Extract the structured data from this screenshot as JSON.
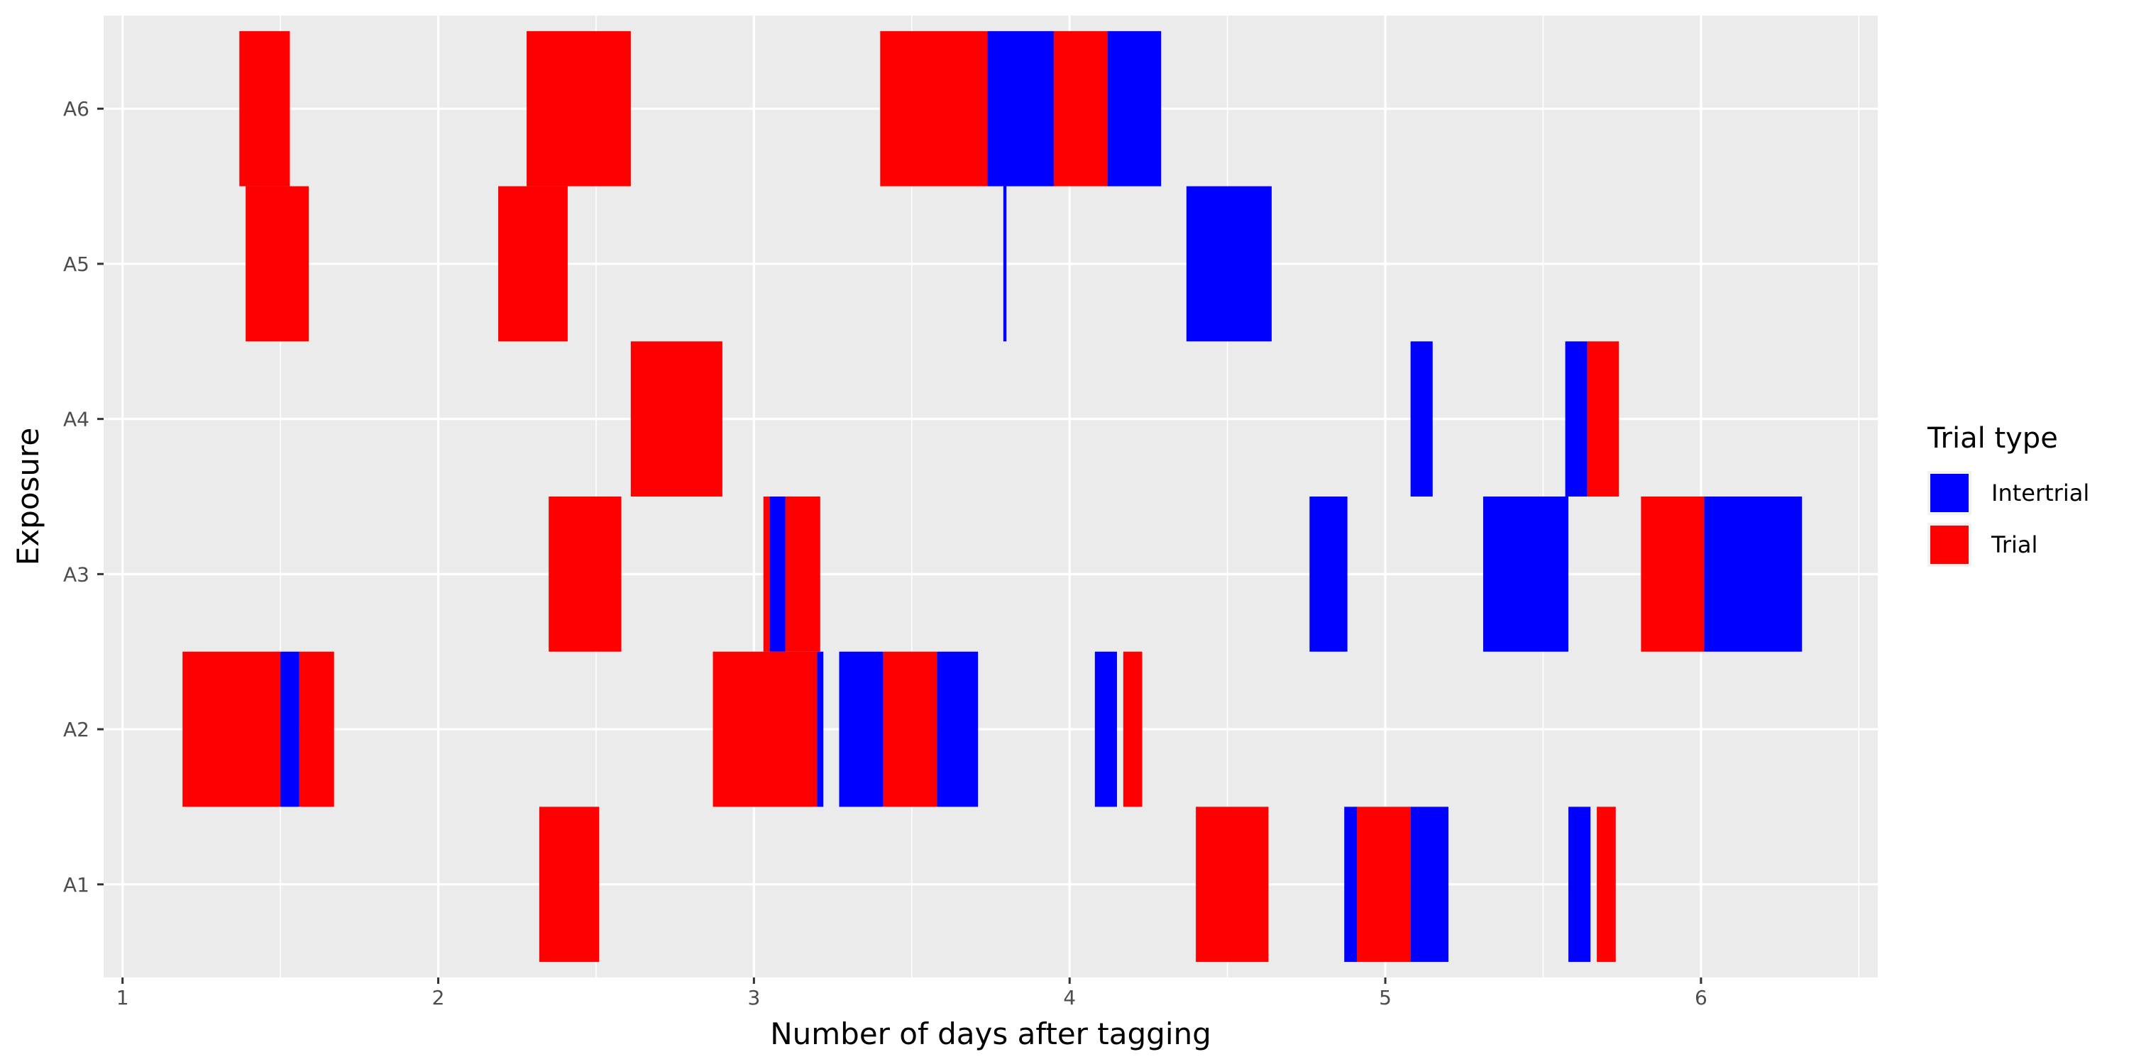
{
  "chart_data": {
    "type": "bar",
    "orientation": "horizontal",
    "title": "",
    "xlabel": "Number of days after tagging",
    "ylabel": "Exposure",
    "xlim": [
      0.94,
      6.56
    ],
    "x_ticks": [
      1,
      2,
      3,
      4,
      5,
      6
    ],
    "categories": [
      "A1",
      "A2",
      "A3",
      "A4",
      "A5",
      "A6"
    ],
    "grid": true,
    "legend": {
      "title": "Trial type",
      "position": "right",
      "entries": [
        {
          "label": "Intertrial",
          "color": "#0000FF"
        },
        {
          "label": "Trial",
          "color": "#FF0000"
        }
      ]
    },
    "colors": {
      "Intertrial": "#0000FF",
      "Trial": "#FF0000",
      "panel_background": "#EBEBEB",
      "gridline": "#FFFFFF"
    },
    "segments": [
      {
        "category": "A1",
        "type": "Trial",
        "start": 2.32,
        "end": 2.51
      },
      {
        "category": "A1",
        "type": "Trial",
        "start": 4.4,
        "end": 4.63
      },
      {
        "category": "A1",
        "type": "Intertrial",
        "start": 4.87,
        "end": 4.91
      },
      {
        "category": "A1",
        "type": "Trial",
        "start": 4.91,
        "end": 5.08
      },
      {
        "category": "A1",
        "type": "Intertrial",
        "start": 5.08,
        "end": 5.2
      },
      {
        "category": "A1",
        "type": "Intertrial",
        "start": 5.58,
        "end": 5.65
      },
      {
        "category": "A1",
        "type": "Trial",
        "start": 5.67,
        "end": 5.73
      },
      {
        "category": "A2",
        "type": "Trial",
        "start": 1.19,
        "end": 1.5
      },
      {
        "category": "A2",
        "type": "Intertrial",
        "start": 1.5,
        "end": 1.56
      },
      {
        "category": "A2",
        "type": "Trial",
        "start": 1.56,
        "end": 1.67
      },
      {
        "category": "A2",
        "type": "Trial",
        "start": 2.87,
        "end": 3.2
      },
      {
        "category": "A2",
        "type": "Intertrial",
        "start": 3.2,
        "end": 3.22
      },
      {
        "category": "A2",
        "type": "Intertrial",
        "start": 3.27,
        "end": 3.41
      },
      {
        "category": "A2",
        "type": "Trial",
        "start": 3.41,
        "end": 3.58
      },
      {
        "category": "A2",
        "type": "Intertrial",
        "start": 3.58,
        "end": 3.71
      },
      {
        "category": "A2",
        "type": "Intertrial",
        "start": 4.08,
        "end": 4.15
      },
      {
        "category": "A2",
        "type": "Trial",
        "start": 4.17,
        "end": 4.23
      },
      {
        "category": "A3",
        "type": "Trial",
        "start": 2.35,
        "end": 2.58
      },
      {
        "category": "A3",
        "type": "Trial",
        "start": 3.03,
        "end": 3.05
      },
      {
        "category": "A3",
        "type": "Intertrial",
        "start": 3.05,
        "end": 3.1
      },
      {
        "category": "A3",
        "type": "Trial",
        "start": 3.1,
        "end": 3.21
      },
      {
        "category": "A3",
        "type": "Intertrial",
        "start": 4.76,
        "end": 4.88
      },
      {
        "category": "A3",
        "type": "Intertrial",
        "start": 5.31,
        "end": 5.58
      },
      {
        "category": "A3",
        "type": "Trial",
        "start": 5.81,
        "end": 6.01
      },
      {
        "category": "A3",
        "type": "Intertrial",
        "start": 6.01,
        "end": 6.32
      },
      {
        "category": "A4",
        "type": "Trial",
        "start": 2.61,
        "end": 2.9
      },
      {
        "category": "A4",
        "type": "Intertrial",
        "start": 5.08,
        "end": 5.15
      },
      {
        "category": "A4",
        "type": "Intertrial",
        "start": 5.57,
        "end": 5.64
      },
      {
        "category": "A4",
        "type": "Trial",
        "start": 5.64,
        "end": 5.74
      },
      {
        "category": "A5",
        "type": "Trial",
        "start": 1.39,
        "end": 1.59
      },
      {
        "category": "A5",
        "type": "Trial",
        "start": 2.19,
        "end": 2.41
      },
      {
        "category": "A5",
        "type": "Intertrial",
        "start": 3.79,
        "end": 3.8
      },
      {
        "category": "A5",
        "type": "Intertrial",
        "start": 4.37,
        "end": 4.64
      },
      {
        "category": "A6",
        "type": "Trial",
        "start": 1.37,
        "end": 1.53
      },
      {
        "category": "A6",
        "type": "Trial",
        "start": 2.28,
        "end": 2.61
      },
      {
        "category": "A6",
        "type": "Trial",
        "start": 3.4,
        "end": 3.74
      },
      {
        "category": "A6",
        "type": "Intertrial",
        "start": 3.74,
        "end": 3.95
      },
      {
        "category": "A6",
        "type": "Trial",
        "start": 3.95,
        "end": 4.12
      },
      {
        "category": "A6",
        "type": "Intertrial",
        "start": 4.12,
        "end": 4.29
      }
    ]
  }
}
